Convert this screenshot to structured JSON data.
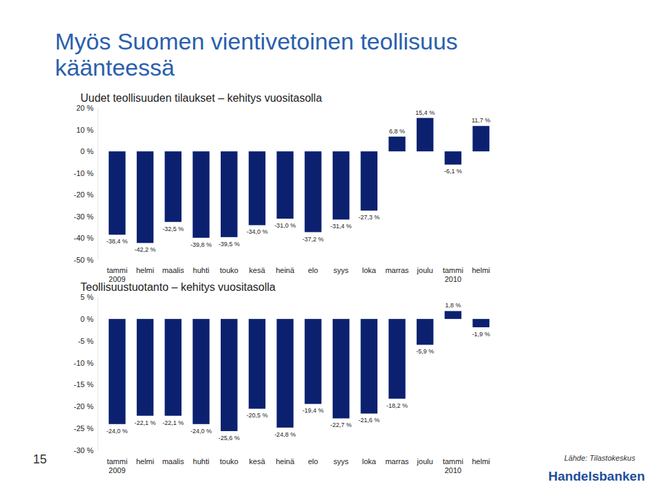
{
  "title": "Myös Suomen vientivetoinen teollisuus käänteessä",
  "page_number": 15,
  "source": "Lähde: Tilastokeskus",
  "logo": "Handelsbanken",
  "chart_data": [
    {
      "type": "bar",
      "title": "Uudet teollisuuden tilaukset – kehitys vuositasolla",
      "categories": [
        "tammi 2009",
        "helmi",
        "maalis",
        "huhti",
        "touko",
        "kesä",
        "heinä",
        "elo",
        "syys",
        "loka",
        "marras",
        "joulu",
        "tammi 2010",
        "helmi"
      ],
      "values": [
        -38.4,
        -42.2,
        -32.5,
        -39.8,
        -39.5,
        -34.0,
        -31.0,
        -37.2,
        -31.4,
        -27.3,
        6.8,
        15.4,
        -6.1,
        11.7
      ],
      "value_labels": [
        "-38,4 %",
        "-42,2 %",
        "-32,5 %",
        "-39,8 %",
        "-39,5 %",
        "-34,0 %",
        "-31,0 %",
        "-37,2 %",
        "-31,4 %",
        "-27,3 %",
        "6,8 %",
        "15,4 %",
        "-6,1 %",
        "11,7 %"
      ],
      "color": "#0b2170",
      "ylim": [
        -50,
        20
      ],
      "yticks": [
        {
          "value": 20,
          "label": "20 %"
        },
        {
          "value": 10,
          "label": "10 %"
        },
        {
          "value": 0,
          "label": "0 %"
        },
        {
          "value": -10,
          "label": "-10 %"
        },
        {
          "value": -20,
          "label": "-20 %"
        },
        {
          "value": -30,
          "label": "-30 %"
        },
        {
          "value": -40,
          "label": "-40 %"
        },
        {
          "value": -50,
          "label": "-50 %"
        }
      ],
      "grid": false,
      "data_labels": true
    },
    {
      "type": "bar",
      "title": "Teollisuustuotanto – kehitys vuositasolla",
      "categories": [
        "tammi 2009",
        "helmi",
        "maalis",
        "huhti",
        "touko",
        "kesä",
        "heinä",
        "elo",
        "syys",
        "loka",
        "marras",
        "joulu",
        "tammi 2010",
        "helmi"
      ],
      "values": [
        -24.0,
        -22.1,
        -22.1,
        -24.0,
        -25.6,
        -20.5,
        -24.8,
        -19.4,
        -22.7,
        -21.6,
        -18.2,
        -5.9,
        1.8,
        -1.9
      ],
      "value_labels": [
        "-24,0 %",
        "-22,1 %",
        "-22,1 %",
        "-24,0 %",
        "-25,6 %",
        "-20,5 %",
        "-24,8 %",
        "-19,4 %",
        "-22,7 %",
        "-21,6 %",
        "-18,2 %",
        "-5,9 %",
        "1,8 %",
        "-1,9 %"
      ],
      "color": "#0b2170",
      "ylim": [
        -30,
        5
      ],
      "yticks": [
        {
          "value": 5,
          "label": "5 %"
        },
        {
          "value": 0,
          "label": "0 %"
        },
        {
          "value": -5,
          "label": "-5 %"
        },
        {
          "value": -10,
          "label": "-10 %"
        },
        {
          "value": -15,
          "label": "-15 %"
        },
        {
          "value": -20,
          "label": "-20 %"
        },
        {
          "value": -25,
          "label": "-25 %"
        },
        {
          "value": -30,
          "label": "-30 %"
        }
      ],
      "grid": false,
      "data_labels": true
    }
  ]
}
